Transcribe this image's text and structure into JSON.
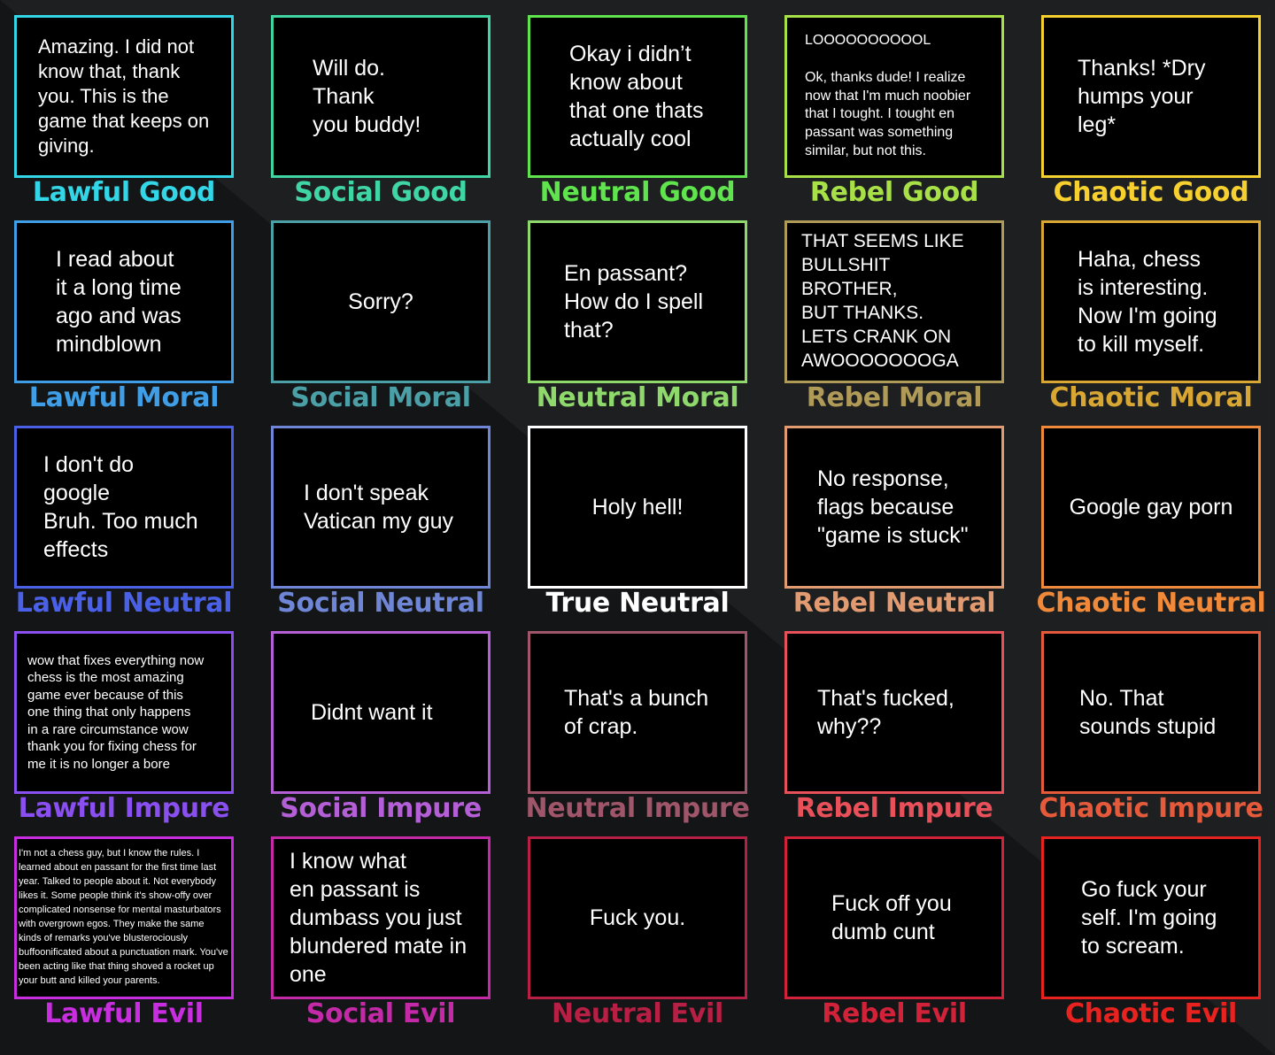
{
  "cells": [
    {
      "label": "Lawful Good",
      "color": "#33d6e6",
      "text": "Amazing. I did not\nknow that, thank\nyou. This is the\ngame that keeps on\ngiving.",
      "size": 22,
      "pad": "8px 24px"
    },
    {
      "label": "Social Good",
      "color": "#3fd6a4",
      "text": "Will do. Thank\nyou buddy!",
      "size": 25,
      "pad": "8px 44px"
    },
    {
      "label": "Neutral Good",
      "color": "#5fe44d",
      "text": "Okay i didn’t\nknow about\nthat one thats\nactually cool",
      "size": 25,
      "pad": "8px 44px"
    },
    {
      "label": "Rebel Good",
      "color": "#a8e047",
      "text": "LOOOOOOOOOOL\n\nOk, thanks dude! I realize\nnow that I'm much noobier\nthat I tought. I tought en\npassant was something\nsimilar, but not this.",
      "size": 16,
      "pad": "8px 20px"
    },
    {
      "label": "Chaotic Good",
      "color": "#f6d02f",
      "text": "Thanks! *Dry\nhumps your leg*",
      "size": 25,
      "pad": "8px 38px"
    },
    {
      "label": "Lawful Moral",
      "color": "#3f9ee6",
      "text": "I read about\nit a long time\nago and was\nmindblown",
      "size": 25,
      "pad": "8px 44px"
    },
    {
      "label": "Social Moral",
      "color": "#4aa0a6",
      "text": "Sorry?",
      "size": 25,
      "pad": "8px 0",
      "align": "center"
    },
    {
      "label": "Neutral Moral",
      "color": "#8fd86c",
      "text": "En passant?\nHow do I spell\nthat?",
      "size": 25,
      "pad": "8px 38px"
    },
    {
      "label": "Rebel Moral",
      "color": "#b09a58",
      "text": "THAT SEEMS LIKE\nBULLSHIT BROTHER,\nBUT THANKS.\nLETS CRANK ON\nAWOOOOOOOGA",
      "size": 21,
      "pad": "8px 16px"
    },
    {
      "label": "Chaotic Moral",
      "color": "#d8a632",
      "text": "Haha, chess\nis interesting.\nNow I'm going\nto kill myself.",
      "size": 25,
      "pad": "8px 38px"
    },
    {
      "label": "Lawful Neutral",
      "color": "#4a60e6",
      "text": "I don't do google\nBruh. Too much\neffects",
      "size": 25,
      "pad": "8px 30px"
    },
    {
      "label": "Social Neutral",
      "color": "#6f86d6",
      "text": "I don't speak\nVatican my guy",
      "size": 25,
      "pad": "8px 34px"
    },
    {
      "label": "True Neutral",
      "color": "#ffffff",
      "text": "Holy hell!",
      "size": 25,
      "pad": "8px 0",
      "align": "center"
    },
    {
      "label": "Rebel Neutral",
      "color": "#e29a70",
      "text": "No response,\nflags because\n\"game is stuck\"",
      "size": 25,
      "pad": "8px 34px"
    },
    {
      "label": "Chaotic Neutral",
      "color": "#f08a3a",
      "text": "Google gay porn",
      "size": 25,
      "pad": "8px 0",
      "align": "center"
    },
    {
      "label": "Lawful Impure",
      "color": "#8a4ff0",
      "text": "wow that fixes everything now\nchess is the most amazing\ngame ever because of this\none thing that only happens\nin a rare circumstance wow\nthank you for fixing chess for\nme it is no longer a bore",
      "size": 15,
      "pad": "8px 12px"
    },
    {
      "label": "Social Impure",
      "color": "#b45fd6",
      "text": "Didnt want it",
      "size": 25,
      "pad": "8px 42px"
    },
    {
      "label": "Neutral Impure",
      "color": "#a0566a",
      "text": "That's a bunch\nof crap.",
      "size": 25,
      "pad": "8px 38px"
    },
    {
      "label": "Rebel Impure",
      "color": "#e8505a",
      "text": "That's fucked,\nwhy??",
      "size": 25,
      "pad": "8px 34px"
    },
    {
      "label": "Chaotic Impure",
      "color": "#e65a3c",
      "text": "No. That\nsounds stupid",
      "size": 25,
      "pad": "8px 40px"
    },
    {
      "label": "Lawful Evil",
      "color": "#c82ee0",
      "text": "I'm not a chess guy, but I know the rules. I learned about en passant for the first time last year. Talked to people about it. Not everybody likes it. Some people think it's show-offy over complicated nonsense for mental masturbators with overgrown egos. They make the same kinds of remarks you've blusterociously buffoonificated about a punctuation mark. You've been acting like that thing shoved a rocket up your butt and killed your parents.",
      "size": 11,
      "pad": "4px 2px"
    },
    {
      "label": "Social Evil",
      "color": "#c42aa8",
      "text": "I know what\nen passant is\ndumbass you just\nblundered mate in\none",
      "size": 25,
      "pad": "8px 18px"
    },
    {
      "label": "Neutral Evil",
      "color": "#b81f44",
      "text": "Fuck you.",
      "size": 25,
      "pad": "8px 0",
      "align": "center"
    },
    {
      "label": "Rebel Evil",
      "color": "#d2223a",
      "text": "Fuck off you\ndumb cunt",
      "size": 25,
      "pad": "8px 50px"
    },
    {
      "label": "Chaotic Evil",
      "color": "#e8231f",
      "text": "Go fuck your\nself. I'm going\nto scream.",
      "size": 25,
      "pad": "8px 42px"
    }
  ]
}
